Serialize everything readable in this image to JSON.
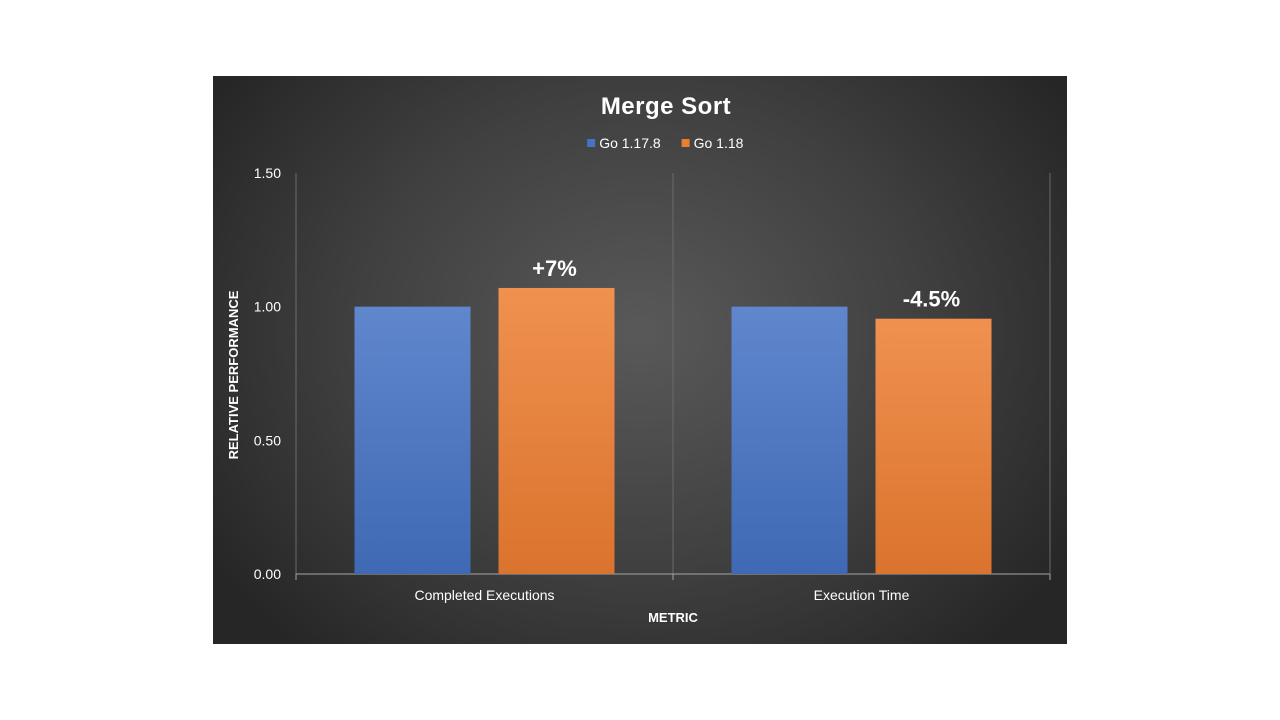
{
  "chart_data": {
    "type": "bar",
    "title": "Merge Sort",
    "xlabel": "METRIC",
    "ylabel": "RELATIVE PERFORMANCE",
    "categories": [
      "Completed Executions",
      "Execution Time"
    ],
    "series": [
      {
        "name": "Go 1.17.8",
        "values": [
          1.0,
          1.0
        ],
        "color": "#4472C4"
      },
      {
        "name": "Go 1.18",
        "values": [
          1.07,
          0.955
        ],
        "color": "#ED7D31"
      }
    ],
    "data_labels": [
      "",
      "",
      "+7%",
      "-4.5%"
    ],
    "yticks": [
      "0.00",
      "0.50",
      "1.00",
      "1.50"
    ],
    "ytick_values": [
      0,
      0.5,
      1.0,
      1.5
    ],
    "ylim": [
      0,
      1.5
    ],
    "legend_position": "top",
    "grid": false
  }
}
